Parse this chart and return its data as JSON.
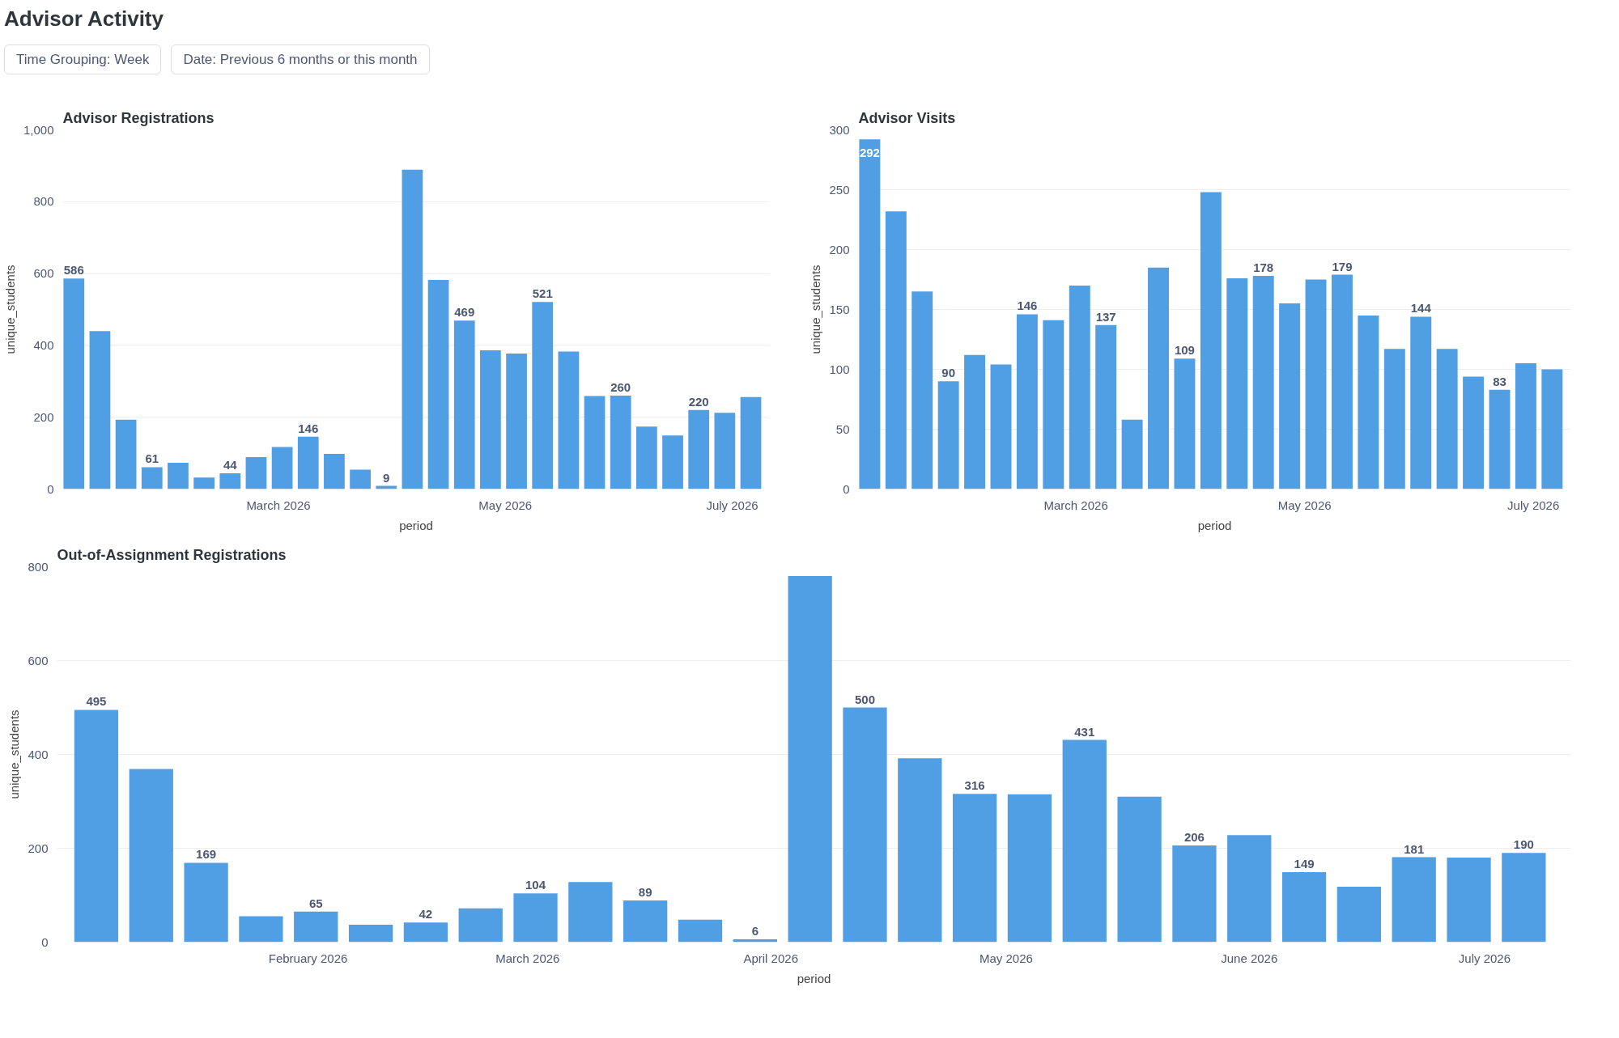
{
  "chart_data": [
    {
      "type": "bar",
      "title": "Advisor Registrations",
      "xlabel": "period",
      "ylabel": "unique_students",
      "annotations": [
        "Advisor Activity",
        "Time Grouping: Week",
        "Date: Previous 6 months or this month"
      ],
      "x": [
        "2026-01-05",
        "2026-01-12",
        "2026-01-19",
        "2026-01-26",
        "2026-02-02",
        "2026-02-09",
        "2026-02-16",
        "2026-02-23",
        "2026-03-02",
        "2026-03-09",
        "2026-03-16",
        "2026-03-23",
        "2026-03-30",
        "2026-04-06",
        "2026-04-13",
        "2026-04-20",
        "2026-04-27",
        "2026-05-04",
        "2026-05-11",
        "2026-05-18",
        "2026-05-25",
        "2026-06-01",
        "2026-06-08",
        "2026-06-15",
        "2026-06-22",
        "2026-06-29",
        "2026-07-06"
      ],
      "series": [
        {
          "color": "#509ee3",
          "values": [
            586,
            440,
            193,
            61,
            73,
            32,
            44,
            89,
            117,
            146,
            98,
            54,
            9,
            889,
            582,
            469,
            386,
            377,
            521,
            383,
            259,
            260,
            174,
            149,
            220,
            212,
            256
          ],
          "value_labels": [
            "586",
            null,
            null,
            "61",
            null,
            null,
            "44",
            null,
            null,
            "146",
            null,
            null,
            "9",
            null,
            null,
            "469",
            null,
            null,
            "521",
            null,
            null,
            "260",
            null,
            null,
            "220",
            null,
            null
          ]
        }
      ],
      "xlim": [
        "2026-01-02",
        "2026-07-11"
      ],
      "xticks": [
        {
          "value": "2026-03-01",
          "label": "March 2026"
        },
        {
          "value": "2026-05-01",
          "label": "May 2026"
        },
        {
          "value": "2026-07-01",
          "label": "July 2026"
        }
      ],
      "ylim": [
        0,
        1000
      ],
      "yticks": [
        0,
        200,
        400,
        600,
        800,
        {
          "value": 1000,
          "label": "1,000"
        }
      ],
      "grid": "y"
    },
    {
      "type": "bar",
      "title": "Advisor Visits",
      "xlabel": "period",
      "ylabel": "unique_students",
      "x": [
        "2026-01-05",
        "2026-01-12",
        "2026-01-19",
        "2026-01-26",
        "2026-02-02",
        "2026-02-09",
        "2026-02-16",
        "2026-02-23",
        "2026-03-02",
        "2026-03-09",
        "2026-03-16",
        "2026-03-23",
        "2026-03-30",
        "2026-04-06",
        "2026-04-13",
        "2026-04-20",
        "2026-04-27",
        "2026-05-04",
        "2026-05-11",
        "2026-05-18",
        "2026-05-25",
        "2026-06-01",
        "2026-06-08",
        "2026-06-15",
        "2026-06-22",
        "2026-06-29",
        "2026-07-06"
      ],
      "series": [
        {
          "color": "#509ee3",
          "values": [
            292,
            232,
            165,
            90,
            112,
            104,
            146,
            141,
            170,
            137,
            58,
            185,
            109,
            248,
            176,
            178,
            155,
            175,
            179,
            145,
            117,
            144,
            117,
            94,
            83,
            105,
            100
          ],
          "value_labels": [
            "292",
            null,
            null,
            "90",
            null,
            null,
            "146",
            null,
            null,
            "137",
            null,
            null,
            "109",
            null,
            null,
            "178",
            null,
            null,
            "179",
            null,
            null,
            "144",
            null,
            null,
            "83",
            null,
            null
          ]
        }
      ],
      "xlim": [
        "2026-01-02",
        "2026-07-11"
      ],
      "xticks": [
        {
          "value": "2026-03-01",
          "label": "March 2026"
        },
        {
          "value": "2026-05-01",
          "label": "May 2026"
        },
        {
          "value": "2026-07-01",
          "label": "July 2026"
        }
      ],
      "ylim": [
        0,
        300
      ],
      "yticks": [
        0,
        50,
        100,
        150,
        200,
        250,
        300
      ],
      "grid": "y"
    },
    {
      "type": "bar",
      "title": "Out-of-Assignment Registrations",
      "xlabel": "period",
      "ylabel": "unique_students",
      "x": [
        "2026-01-05",
        "2026-01-12",
        "2026-01-19",
        "2026-01-26",
        "2026-02-02",
        "2026-02-09",
        "2026-02-16",
        "2026-02-23",
        "2026-03-02",
        "2026-03-09",
        "2026-03-16",
        "2026-03-23",
        "2026-03-30",
        "2026-04-06",
        "2026-04-13",
        "2026-04-20",
        "2026-04-27",
        "2026-05-04",
        "2026-05-11",
        "2026-05-18",
        "2026-05-25",
        "2026-06-01",
        "2026-06-08",
        "2026-06-15",
        "2026-06-22",
        "2026-06-29",
        "2026-07-06"
      ],
      "series": [
        {
          "color": "#509ee3",
          "values": [
            495,
            369,
            169,
            55,
            65,
            37,
            42,
            72,
            104,
            128,
            89,
            48,
            6,
            780,
            500,
            392,
            316,
            315,
            431,
            310,
            206,
            228,
            149,
            118,
            181,
            180,
            190
          ],
          "value_labels": [
            "495",
            null,
            "169",
            null,
            "65",
            null,
            "42",
            null,
            "104",
            null,
            "89",
            null,
            "6",
            null,
            "500",
            null,
            "316",
            null,
            "431",
            null,
            "206",
            null,
            "149",
            null,
            "181",
            null,
            "190"
          ]
        }
      ],
      "xlim": [
        "2025-12-31",
        "2026-07-12"
      ],
      "xticks": [
        {
          "value": "2026-02-01",
          "label": "February 2026"
        },
        {
          "value": "2026-03-01",
          "label": "March 2026"
        },
        {
          "value": "2026-04-01",
          "label": "April 2026"
        },
        {
          "value": "2026-05-01",
          "label": "May 2026"
        },
        {
          "value": "2026-06-01",
          "label": "June 2026"
        },
        {
          "value": "2026-07-01",
          "label": "July 2026"
        }
      ],
      "ylim": [
        0,
        800
      ],
      "yticks": [
        0,
        200,
        400,
        600,
        800
      ],
      "grid": "y"
    }
  ]
}
